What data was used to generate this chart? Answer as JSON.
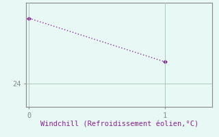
{
  "x": [
    0,
    1
  ],
  "y": [
    28.2,
    25.4
  ],
  "line_color": "#882299",
  "marker": "D",
  "marker_size": 3,
  "bg_color": "#E8F8F5",
  "grid_color": "#AACCBB",
  "axis_color": "#888888",
  "xlabel": "Windchill (Refroidissement éolien,°C)",
  "xlabel_color": "#882299",
  "xlabel_fontsize": 7.5,
  "tick_color": "#882299",
  "tick_fontsize": 7.5,
  "yticks": [
    24
  ],
  "ytick_labels": [
    "24"
  ],
  "xticks": [
    0,
    1
  ],
  "xtick_labels": [
    "0",
    "1"
  ],
  "xlim": [
    -0.02,
    1.35
  ],
  "ylim": [
    22.5,
    29.2
  ],
  "linestyle": "-",
  "linewidth": 1.0
}
